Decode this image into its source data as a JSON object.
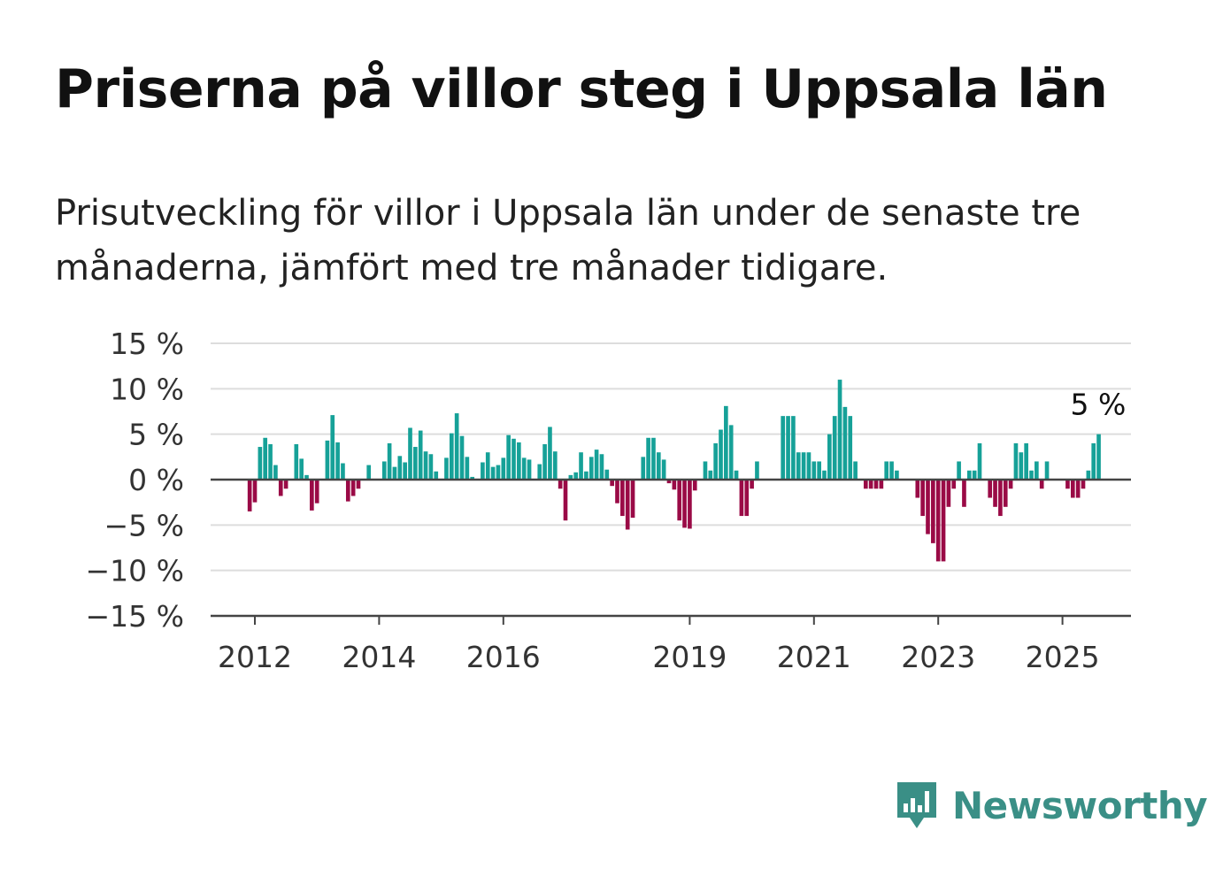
{
  "title": "Priserna på villor steg i Uppsala län",
  "subtitle": "Prisutveckling för villor i Uppsala län under de senaste tre månaderna, jämfört med tre månader tidigare.",
  "brand": {
    "name": "Newsworthy",
    "icon": "newsworthy-logo-icon"
  },
  "colors": {
    "positive": "#16a198",
    "negative": "#9a0a46",
    "grid": "#dddddd",
    "axis": "#444444",
    "brand": "#3a8f86"
  },
  "chart_data": {
    "type": "bar",
    "title": "Priserna på villor steg i Uppsala län",
    "xlabel": "",
    "ylabel": "",
    "ylim": [
      -15,
      15
    ],
    "yticks": [
      15,
      10,
      5,
      0,
      -5,
      -10,
      -15
    ],
    "ytick_labels": [
      "15 %",
      "10 %",
      "5 %",
      "0 %",
      "−5 %",
      "−10 %",
      "−15 %"
    ],
    "xticks": [
      2012,
      2014,
      2016,
      2019,
      2021,
      2023,
      2025
    ],
    "xtick_labels": [
      "2012",
      "2014",
      "2016",
      "2019",
      "2021",
      "2023",
      "2025"
    ],
    "grid": true,
    "unit": "%",
    "x_start": "2012-01",
    "x_end": "2025-06",
    "annotation": {
      "text": "5 %",
      "date": "2025-06"
    },
    "values": [
      -3.5,
      -2.5,
      3.6,
      4.6,
      3.9,
      1.6,
      -1.8,
      -1.0,
      0.0,
      3.9,
      2.3,
      0.5,
      -3.4,
      -2.6,
      0.0,
      4.3,
      7.1,
      4.1,
      1.8,
      -2.4,
      -1.8,
      -1.0,
      0.0,
      1.6,
      0.0,
      0.0,
      2.0,
      4.0,
      1.4,
      2.6,
      1.9,
      5.7,
      3.6,
      5.4,
      3.1,
      2.8,
      0.9,
      0.0,
      2.4,
      5.1,
      7.3,
      4.8,
      2.5,
      0.3,
      0.0,
      1.9,
      3.0,
      1.4,
      1.6,
      2.4,
      4.9,
      4.5,
      4.1,
      2.4,
      2.2,
      0.0,
      1.7,
      3.9,
      5.8,
      3.1,
      -1.0,
      -4.5,
      0.5,
      0.8,
      3.0,
      0.9,
      2.5,
      3.3,
      2.8,
      1.1,
      -0.7,
      -2.6,
      -4.0,
      -5.5,
      -4.2,
      0.0,
      2.5,
      4.6,
      4.6,
      3.0,
      2.2,
      -0.4,
      -1.1,
      -4.5,
      -5.3,
      -5.4,
      -1.2,
      0.0,
      2.0,
      1.0,
      4.0,
      5.5,
      8.1,
      6.0,
      1.0,
      -4.0,
      -4.0,
      -1.0,
      2.0,
      0.0,
      0.0,
      0.0,
      0.0,
      7.0,
      7.0,
      7.0,
      3.0,
      3.0,
      3.0,
      2.0,
      2.0,
      1.0,
      5.0,
      7.0,
      11.0,
      8.0,
      7.0,
      2.0,
      0.0,
      -1.0,
      -1.0,
      -1.0,
      -1.0,
      2.0,
      2.0,
      1.0,
      0.0,
      0.0,
      0.0,
      -2.0,
      -4.0,
      -6.0,
      -7.0,
      -9.0,
      -9.0,
      -3.0,
      -1.0,
      2.0,
      -3.0,
      1.0,
      1.0,
      4.0,
      0.0,
      -2.0,
      -3.0,
      -4.0,
      -3.0,
      -1.0,
      4.0,
      3.0,
      4.0,
      1.0,
      2.0,
      -1.0,
      2.0,
      0.0,
      0.0,
      0.0,
      -1.0,
      -2.0,
      -2.0,
      -1.0,
      1.0,
      4.0,
      5.0
    ]
  }
}
